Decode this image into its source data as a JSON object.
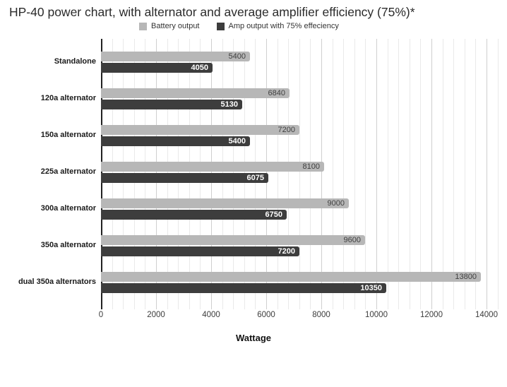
{
  "title": "HP-40 power chart, with alternator and average amplifier efficiency (75%)*",
  "legend": {
    "items": [
      {
        "label": "Battery output",
        "color": "#b7b7b7"
      },
      {
        "label": "Amp output with 75% effeciency",
        "color": "#3d3d3d"
      }
    ]
  },
  "axis": {
    "xlabel": "Wattage",
    "tick_labels": [
      "0",
      "2000",
      "4000",
      "6000",
      "8000",
      "10000",
      "12000",
      "14000"
    ],
    "tick_values": [
      0,
      2000,
      4000,
      6000,
      8000,
      10000,
      12000,
      14000
    ],
    "max": 14000,
    "minor_gridline_step": 400,
    "major_gridline_step": 2000
  },
  "colors": {
    "battery_bar": "#b7b7b7",
    "amp_bar": "#3d3d3d",
    "minor_gridline": "#e9e9e9",
    "major_gridline": "#cfcfcf",
    "axis_line": "#212121"
  },
  "chart_data": {
    "type": "bar",
    "orientation": "horizontal",
    "title": "HP-40 power chart, with alternator and average amplifier efficiency (75%)*",
    "categories": [
      "Standalone",
      "120a alternator",
      "150a alternator",
      "225a alternator",
      "300a alternator",
      "350a alternator",
      "dual 350a alternators"
    ],
    "series": [
      {
        "name": "Battery output",
        "values": [
          5400,
          6840,
          7200,
          8100,
          9000,
          9600,
          13800
        ]
      },
      {
        "name": "Amp output with 75% effeciency",
        "values": [
          4050,
          5130,
          5400,
          6075,
          6750,
          7200,
          10350
        ]
      }
    ],
    "xlabel": "Wattage",
    "ylabel": "",
    "xlim": [
      0,
      14000
    ],
    "grid": true,
    "legend_position": "top",
    "data_labels": true
  }
}
